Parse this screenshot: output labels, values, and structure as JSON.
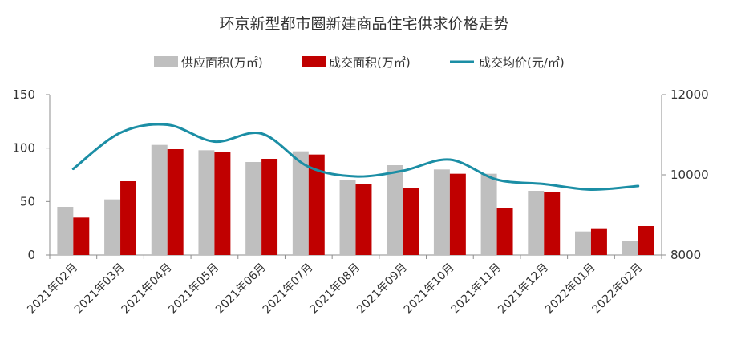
{
  "chart_data": {
    "type": "bar",
    "title": "环京新型都市圈新建商品住宅供求价格走势",
    "categories": [
      "2021年02月",
      "2021年03月",
      "2021年04月",
      "2021年05月",
      "2021年06月",
      "2021年07月",
      "2021年08月",
      "2021年09月",
      "2021年10月",
      "2021年11月",
      "2021年12月",
      "2022年01月",
      "2022年02月"
    ],
    "series": [
      {
        "name": "供应面积(万㎡)",
        "type": "bar",
        "axis": "left",
        "color": "#bfbfbf",
        "values": [
          45,
          52,
          103,
          98,
          87,
          97,
          70,
          84,
          80,
          76,
          60,
          22,
          13
        ]
      },
      {
        "name": "成交面积(万㎡)",
        "type": "bar",
        "axis": "left",
        "color": "#c00000",
        "values": [
          35,
          69,
          99,
          96,
          90,
          94,
          66,
          63,
          76,
          44,
          59,
          25,
          27
        ]
      },
      {
        "name": "成交均价(元/㎡)",
        "type": "line",
        "axis": "right",
        "color": "#1b8ea5",
        "values": [
          10150,
          11050,
          11250,
          10830,
          11030,
          10200,
          9960,
          10100,
          10380,
          9880,
          9770,
          9630,
          9720
        ]
      }
    ],
    "ylim_left": [
      0,
      150
    ],
    "yticks_left": [
      "0",
      "50",
      "100",
      "150"
    ],
    "ylim_right": [
      8000,
      12000
    ],
    "yticks_right": [
      "8000",
      "10000",
      "12000"
    ],
    "legend": "top",
    "grid": false
  }
}
